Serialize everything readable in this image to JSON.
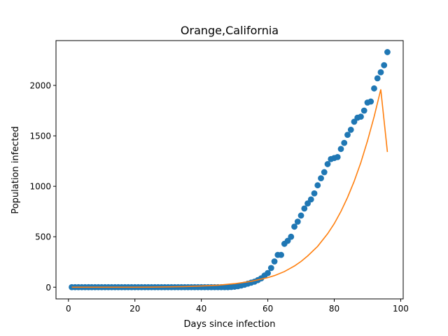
{
  "chart_data": {
    "type": "scatter",
    "title": "Orange,California",
    "xlabel": "Days since infection",
    "ylabel": "Population infected",
    "xlim": [
      -3.75,
      100.75
    ],
    "ylim": [
      -116,
      2444
    ],
    "xticks": [
      0,
      20,
      40,
      60,
      80,
      100
    ],
    "yticks": [
      0,
      500,
      1000,
      1500,
      2000
    ],
    "grid": false,
    "colors": {
      "scatter": "#1f77b4",
      "fit": "#ff7f0e"
    },
    "series": [
      {
        "type": "scatter",
        "x": [
          1,
          2,
          3,
          4,
          5,
          6,
          7,
          8,
          9,
          10,
          11,
          12,
          13,
          14,
          15,
          16,
          17,
          18,
          19,
          20,
          21,
          22,
          23,
          24,
          25,
          26,
          27,
          28,
          29,
          30,
          31,
          32,
          33,
          34,
          35,
          36,
          37,
          38,
          39,
          40,
          41,
          42,
          43,
          44,
          45,
          46,
          47,
          48,
          49,
          50,
          51,
          52,
          53,
          54,
          55,
          56,
          57,
          58,
          59,
          60,
          61,
          62,
          63,
          64,
          65,
          66,
          67,
          68,
          69,
          70,
          71,
          72,
          73,
          74,
          75,
          76,
          77,
          78,
          79,
          80,
          81,
          82,
          83,
          84,
          85,
          86,
          87,
          88,
          89,
          90,
          91,
          92,
          93,
          94,
          95,
          96
        ],
        "y": [
          0,
          0,
          0,
          0,
          0,
          0,
          0,
          0,
          0,
          0,
          0,
          0,
          0,
          0,
          0,
          0,
          0,
          0,
          0,
          0,
          0,
          0,
          0,
          0,
          0,
          0,
          0,
          0,
          0,
          0,
          0,
          0,
          0,
          0,
          0,
          0,
          0,
          0,
          0,
          0,
          0,
          0,
          0,
          0,
          0,
          0,
          0,
          0,
          2,
          5,
          10,
          17,
          25,
          35,
          45,
          55,
          70,
          88,
          115,
          140,
          190,
          255,
          320,
          320,
          430,
          460,
          500,
          600,
          650,
          710,
          780,
          830,
          870,
          930,
          1010,
          1080,
          1140,
          1220,
          1270,
          1280,
          1290,
          1370,
          1430,
          1510,
          1560,
          1640,
          1680,
          1690,
          1750,
          1830,
          1840,
          1970,
          2070,
          2130,
          2200,
          2330
        ]
      },
      {
        "type": "line",
        "x": [
          1,
          5,
          10,
          15,
          20,
          25,
          30,
          35,
          40,
          45,
          50,
          55,
          60,
          62,
          65,
          68,
          70,
          72,
          75,
          78,
          80,
          82,
          84,
          86,
          88,
          90,
          92,
          94,
          96
        ],
        "y": [
          0,
          0,
          0,
          0,
          0,
          1,
          3,
          6,
          12,
          20,
          35,
          58,
          95,
          115,
          155,
          210,
          255,
          310,
          405,
          530,
          630,
          750,
          890,
          1050,
          1235,
          1450,
          1690,
          1960,
          1340
        ]
      }
    ]
  }
}
